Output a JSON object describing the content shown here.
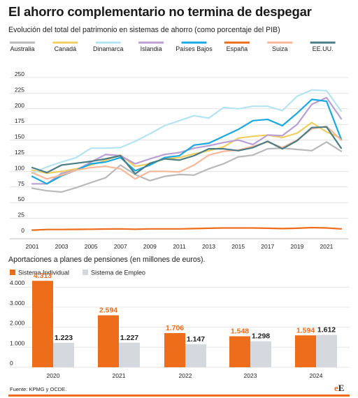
{
  "title": "El ahorro complementario no termina de despegar",
  "chart_data": [
    {
      "type": "line",
      "title": "Evolución del total del patrimonio en sistemas de ahorro (como porcentaje del PIB)",
      "x": [
        2001,
        2002,
        2003,
        2004,
        2005,
        2006,
        2007,
        2008,
        2009,
        2010,
        2011,
        2012,
        2013,
        2014,
        2015,
        2016,
        2017,
        2018,
        2019,
        2020,
        2021,
        2022
      ],
      "xticks": [
        "2001",
        "2003",
        "2005",
        "2007",
        "2009",
        "2011",
        "2013",
        "2015",
        "2017",
        "2019",
        "2021"
      ],
      "yticks": [
        "0",
        "25",
        "50",
        "75",
        "100",
        "125",
        "150",
        "175",
        "200",
        "225",
        "250"
      ],
      "ylim": [
        0,
        250
      ],
      "grid": true,
      "legend": "top",
      "series": [
        {
          "name": "Australia",
          "color": "#b9b9b9",
          "values": [
            73,
            69,
            67,
            74,
            82,
            90,
            110,
            95,
            85,
            92,
            95,
            94,
            104,
            112,
            123,
            126,
            136,
            137,
            135,
            133,
            147,
            132
          ]
        },
        {
          "name": "Canadá",
          "color": "#f0cf60",
          "values": [
            102,
            97,
            100,
            104,
            110,
            118,
            126,
            108,
            112,
            120,
            122,
            128,
            133,
            139,
            153,
            156,
            158,
            154,
            161,
            178,
            163,
            153
          ]
        },
        {
          "name": "Dinamarca",
          "color": "#b4e4f1",
          "values": [
            97,
            107,
            115,
            122,
            137,
            137,
            138,
            148,
            160,
            173,
            181,
            189,
            185,
            202,
            200,
            204,
            204,
            197,
            220,
            230,
            229,
            196
          ]
        },
        {
          "name": "Islandia",
          "color": "#b99fd3",
          "values": [
            80,
            80,
            97,
            102,
            115,
            127,
            125,
            112,
            120,
            127,
            130,
            137,
            141,
            146,
            150,
            143,
            158,
            157,
            175,
            207,
            218,
            184
          ]
        },
        {
          "name": "Países Bajos",
          "color": "#19a9e1",
          "values": [
            92,
            80,
            93,
            102,
            112,
            115,
            122,
            101,
            110,
            122,
            125,
            142,
            145,
            156,
            167,
            181,
            183,
            173,
            193,
            215,
            212,
            151
          ]
        },
        {
          "name": "España",
          "color": "#ee6d1a",
          "values": [
            6,
            7,
            7,
            7.3,
            7.5,
            7.8,
            8,
            7.5,
            8,
            8,
            8,
            8.5,
            9,
            9.5,
            9.5,
            9.5,
            9,
            8.5,
            9,
            10,
            9.5,
            8
          ]
        },
        {
          "name": "Suiza",
          "color": "#f7b899",
          "values": [
            98,
            88,
            94,
            102,
            106,
            108,
            104,
            88,
            100,
            100,
            99,
            110,
            126,
            132,
            134,
            140,
            147,
            138,
            150,
            168,
            172,
            150
          ]
        },
        {
          "name": "EE.UU.",
          "color": "#4d7d84",
          "values": [
            106,
            98,
            110,
            113,
            116,
            120,
            125,
            96,
            113,
            120,
            118,
            125,
            136,
            136,
            133,
            138,
            148,
            136,
            149,
            170,
            171,
            137
          ]
        }
      ]
    },
    {
      "type": "bar",
      "title": "Aportaciones a planes de pensiones (en millones de euros).",
      "categories": [
        "2020",
        "2021",
        "2022",
        "2023",
        "2024"
      ],
      "yticks": [
        "0",
        "1.000",
        "2.000",
        "3.000",
        "4.000"
      ],
      "ylim": [
        0,
        4500
      ],
      "grid": true,
      "legend": "top-left",
      "series": [
        {
          "name": "Sistema Individual",
          "color": "#ee6d1a",
          "values": [
            4313,
            2594,
            1706,
            1548,
            1594
          ],
          "labels": [
            "4.313",
            "2.594",
            "1.706",
            "1.548",
            "1.594"
          ]
        },
        {
          "name": "Sistema de Empleo",
          "color": "#d5d8dc",
          "values": [
            1223,
            1227,
            1147,
            1298,
            1612
          ],
          "labels": [
            "1.223",
            "1.227",
            "1.147",
            "1.298",
            "1.612"
          ]
        }
      ]
    }
  ],
  "source": "Fuente: KPMG y OCDE.",
  "logo": {
    "part1": "e",
    "part2": "E"
  }
}
